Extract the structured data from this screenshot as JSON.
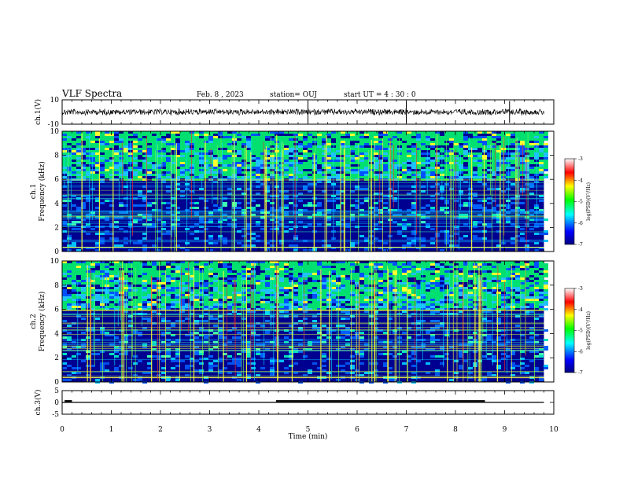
{
  "header": {
    "title": "VLF Spectra",
    "date": "Feb. 8  , 2023",
    "station": "station= OUJ",
    "start_ut": "start  UT =   4 : 30 : 0"
  },
  "colors": {
    "background": "#ffffff",
    "axes": "#000000",
    "trace": "#000000",
    "colormap": [
      "#000080",
      "#0000ff",
      "#00ffff",
      "#00ff00",
      "#ffff00",
      "#ff0000",
      "#ffffff"
    ]
  },
  "chart_data": [
    {
      "id": "ch1-waveform",
      "type": "line",
      "ylabel": "ch.1(V)",
      "ylim": [
        -10,
        10
      ],
      "y_ticks": [
        "10",
        "-10"
      ],
      "xlim": [
        0,
        10
      ],
      "data_extent": [
        0,
        9.8
      ],
      "series": [
        {
          "level": 0,
          "noise": "dense waveform centered near 0 V",
          "spikes_at_min": [
            5.0,
            7.0,
            9.1
          ]
        }
      ]
    },
    {
      "id": "ch1-spectrogram",
      "type": "heatmap",
      "ylabel": "ch.1\nFrequency  (kHz)",
      "ylim": [
        0,
        10
      ],
      "y_ticks": [
        "0",
        "2",
        "4",
        "6",
        "8",
        "10"
      ],
      "xlim": [
        0,
        10
      ],
      "data_extent": [
        0,
        9.8
      ],
      "colorbar": {
        "label": "log(PSD)(V²/Hz)",
        "range": [
          -7,
          -3
        ],
        "ticks": [
          "-3",
          "-4",
          "-5",
          "-6",
          "-7"
        ]
      },
      "features": {
        "intense_band_above_khz": 6.0,
        "sferic_lines": "vertical broadband impulses across 0–10 kHz",
        "hum_lines": "horizontal narrowband lines below 6 kHz"
      }
    },
    {
      "id": "ch2-spectrogram",
      "type": "heatmap",
      "ylabel": "ch.2\nFrequency  (kHz)",
      "ylim": [
        0,
        10
      ],
      "y_ticks": [
        "0",
        "2",
        "4",
        "6",
        "8",
        "10"
      ],
      "xlim": [
        0,
        10
      ],
      "data_extent": [
        0,
        9.8
      ],
      "colorbar": {
        "label": "log(PSD)(V²/Hz)",
        "range": [
          -7,
          -3
        ],
        "ticks": [
          "-3",
          "-4",
          "-5",
          "-6",
          "-7"
        ]
      },
      "features": {
        "intense_band_above_khz": 6.0,
        "sferic_lines": "vertical broadband impulses across 0–10 kHz",
        "hum_lines": "horizontal narrowband lines below 6 kHz"
      }
    },
    {
      "id": "ch3-level",
      "type": "line",
      "ylabel": "ch.3(V)",
      "ylim": [
        -5,
        5
      ],
      "y_ticks": [
        "5",
        "0",
        "-5"
      ],
      "xlim": [
        0,
        10
      ],
      "x_ticks": [
        "0",
        "1",
        "2",
        "3",
        "4",
        "5",
        "6",
        "7",
        "8",
        "9",
        "10"
      ],
      "xlabel": "Time  (min)",
      "series": [
        {
          "segment": [
            0,
            9.8
          ],
          "level": 0
        },
        {
          "segment": [
            0.05,
            0.2
          ],
          "level": 0.6,
          "thick": true
        },
        {
          "segment": [
            4.35,
            8.6
          ],
          "level": 0.6,
          "thick": true
        }
      ]
    }
  ]
}
